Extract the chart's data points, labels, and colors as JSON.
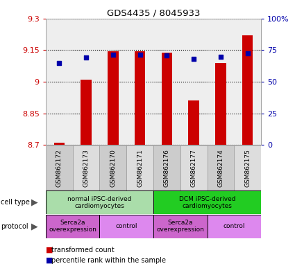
{
  "title": "GDS4435 / 8045933",
  "samples": [
    "GSM862172",
    "GSM862173",
    "GSM862170",
    "GSM862171",
    "GSM862176",
    "GSM862177",
    "GSM862174",
    "GSM862175"
  ],
  "bar_values": [
    8.71,
    9.01,
    9.145,
    9.145,
    9.14,
    8.91,
    9.09,
    9.22
  ],
  "percentile_values": [
    9.09,
    9.115,
    9.13,
    9.13,
    9.125,
    9.11,
    9.12,
    9.135
  ],
  "ylim_left": [
    8.7,
    9.3
  ],
  "ylim_right": [
    0,
    100
  ],
  "yticks_left": [
    8.7,
    8.85,
    9.0,
    9.15,
    9.3
  ],
  "ytick_labels_left": [
    "8.7",
    "8.85",
    "9",
    "9.15",
    "9.3"
  ],
  "yticks_right": [
    0,
    25,
    50,
    75,
    100
  ],
  "ytick_labels_right": [
    "0",
    "25",
    "50",
    "75",
    "100%"
  ],
  "bar_color": "#cc0000",
  "marker_color": "#0000aa",
  "bar_bottom": 8.7,
  "cell_type_groups": [
    {
      "label": "normal iPSC-derived\ncardiomyocytes",
      "start": 0,
      "end": 4,
      "color": "#aaddaa"
    },
    {
      "label": "DCM iPSC-derived\ncardiomyocytes",
      "start": 4,
      "end": 8,
      "color": "#22cc22"
    }
  ],
  "protocol_groups": [
    {
      "label": "Serca2a\noverexpression",
      "start": 0,
      "end": 2,
      "color": "#cc66cc"
    },
    {
      "label": "control",
      "start": 2,
      "end": 4,
      "color": "#dd88ee"
    },
    {
      "label": "Serca2a\noverexpression",
      "start": 4,
      "end": 6,
      "color": "#cc66cc"
    },
    {
      "label": "control",
      "start": 6,
      "end": 8,
      "color": "#dd88ee"
    }
  ],
  "legend_items": [
    {
      "color": "#cc0000",
      "label": "transformed count"
    },
    {
      "color": "#0000aa",
      "label": "percentile rank within the sample"
    }
  ],
  "plot_bg_color": "#eeeeee",
  "left_axis_color": "#cc0000",
  "right_axis_color": "#0000aa",
  "bar_width": 0.4,
  "sample_bg_colors": [
    "#cccccc",
    "#dddddd"
  ]
}
